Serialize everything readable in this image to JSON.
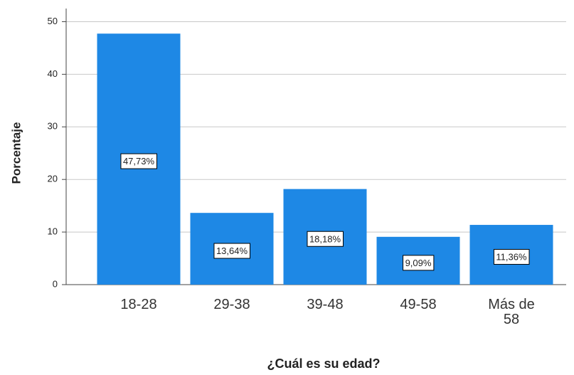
{
  "chart_data": {
    "type": "bar",
    "x_label": "¿Cuál es su edad?",
    "y_label": "Porcentaje",
    "categories": [
      "18-28",
      "29-38",
      "39-48",
      "49-58",
      "Más de 58"
    ],
    "values": [
      47.73,
      13.64,
      18.18,
      9.09,
      11.36
    ],
    "value_labels": [
      "47,73%",
      "13,64%",
      "18,18%",
      "9,09%",
      "11,36%"
    ],
    "color": "#1e88e5",
    "ylim": [
      0,
      52.5
    ],
    "yticks": [
      0,
      10,
      20,
      30,
      40,
      50
    ],
    "grid": true
  }
}
